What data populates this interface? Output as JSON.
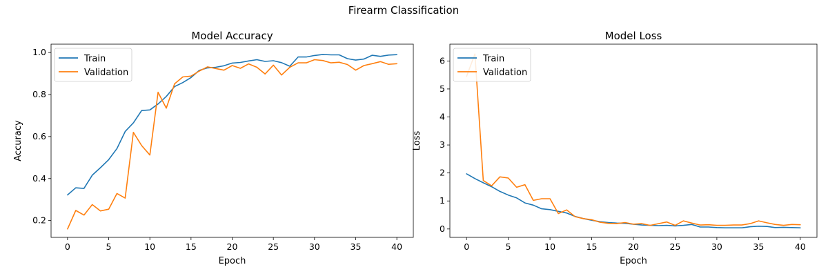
{
  "figure": {
    "title": "Firearm Classification"
  },
  "colors": {
    "train": "#1f77b4",
    "validation": "#ff7f0e"
  },
  "chart_data": [
    {
      "type": "line",
      "title": "Model Accuracy",
      "xlabel": "Epoch",
      "ylabel": "Accuracy",
      "xlim": [
        -2,
        42
      ],
      "ylim": [
        0.12,
        1.04
      ],
      "xticks": [
        0,
        5,
        10,
        15,
        20,
        25,
        30,
        35,
        40
      ],
      "yticks": [
        0.2,
        0.4,
        0.6,
        0.8,
        1.0
      ],
      "ytick_labels": [
        "0.2",
        "0.4",
        "0.6",
        "0.8",
        "1.0"
      ],
      "legend": {
        "placement": "upper-left",
        "entries": [
          "Train",
          "Validation"
        ]
      },
      "x": [
        0,
        1,
        2,
        3,
        4,
        5,
        6,
        7,
        8,
        9,
        10,
        11,
        12,
        13,
        14,
        15,
        16,
        17,
        18,
        19,
        20,
        21,
        22,
        23,
        24,
        25,
        26,
        27,
        28,
        29,
        30,
        31,
        32,
        33,
        34,
        35,
        36,
        37,
        38,
        39,
        40
      ],
      "series": [
        {
          "name": "Train",
          "values": [
            0.322,
            0.356,
            0.353,
            0.416,
            0.452,
            0.49,
            0.543,
            0.624,
            0.665,
            0.724,
            0.727,
            0.755,
            0.791,
            0.838,
            0.857,
            0.881,
            0.915,
            0.927,
            0.93,
            0.937,
            0.95,
            0.953,
            0.96,
            0.966,
            0.958,
            0.961,
            0.952,
            0.935,
            0.979,
            0.979,
            0.986,
            0.991,
            0.989,
            0.989,
            0.971,
            0.964,
            0.969,
            0.987,
            0.982,
            0.988,
            0.99
          ]
        },
        {
          "name": "Validation",
          "values": [
            0.16,
            0.248,
            0.226,
            0.276,
            0.246,
            0.254,
            0.329,
            0.307,
            0.62,
            0.557,
            0.512,
            0.811,
            0.735,
            0.851,
            0.884,
            0.888,
            0.912,
            0.932,
            0.924,
            0.916,
            0.938,
            0.925,
            0.946,
            0.93,
            0.898,
            0.94,
            0.893,
            0.93,
            0.951,
            0.951,
            0.966,
            0.962,
            0.951,
            0.954,
            0.943,
            0.916,
            0.938,
            0.947,
            0.957,
            0.944,
            0.947
          ]
        }
      ]
    },
    {
      "type": "line",
      "title": "Model Loss",
      "xlabel": "Epoch",
      "ylabel": "Loss",
      "xlim": [
        -2,
        42
      ],
      "ylim": [
        -0.3,
        6.6
      ],
      "xticks": [
        0,
        5,
        10,
        15,
        20,
        25,
        30,
        35,
        40
      ],
      "yticks": [
        0,
        1,
        2,
        3,
        4,
        5,
        6
      ],
      "ytick_labels": [
        "0",
        "1",
        "2",
        "3",
        "4",
        "5",
        "6"
      ],
      "legend": {
        "placement": "upper-left",
        "entries": [
          "Train",
          "Validation"
        ]
      },
      "x": [
        0,
        1,
        2,
        3,
        4,
        5,
        6,
        7,
        8,
        9,
        10,
        11,
        12,
        13,
        14,
        15,
        16,
        17,
        18,
        19,
        20,
        21,
        22,
        23,
        24,
        25,
        26,
        27,
        28,
        29,
        30,
        31,
        32,
        33,
        34,
        35,
        36,
        37,
        38,
        39,
        40
      ],
      "series": [
        {
          "name": "Train",
          "values": [
            1.97,
            1.8,
            1.65,
            1.51,
            1.34,
            1.21,
            1.11,
            0.93,
            0.85,
            0.72,
            0.69,
            0.63,
            0.57,
            0.45,
            0.37,
            0.31,
            0.26,
            0.23,
            0.21,
            0.2,
            0.17,
            0.14,
            0.13,
            0.12,
            0.13,
            0.11,
            0.13,
            0.16,
            0.07,
            0.07,
            0.05,
            0.04,
            0.04,
            0.04,
            0.08,
            0.1,
            0.09,
            0.05,
            0.06,
            0.05,
            0.04
          ]
        },
        {
          "name": "Validation",
          "values": [
            5.45,
            6.25,
            1.73,
            1.54,
            1.86,
            1.82,
            1.49,
            1.58,
            1.02,
            1.08,
            1.08,
            0.55,
            0.68,
            0.44,
            0.37,
            0.33,
            0.24,
            0.2,
            0.19,
            0.23,
            0.17,
            0.19,
            0.13,
            0.19,
            0.25,
            0.13,
            0.29,
            0.21,
            0.14,
            0.15,
            0.13,
            0.13,
            0.14,
            0.14,
            0.19,
            0.29,
            0.22,
            0.16,
            0.13,
            0.16,
            0.15
          ]
        }
      ]
    }
  ]
}
